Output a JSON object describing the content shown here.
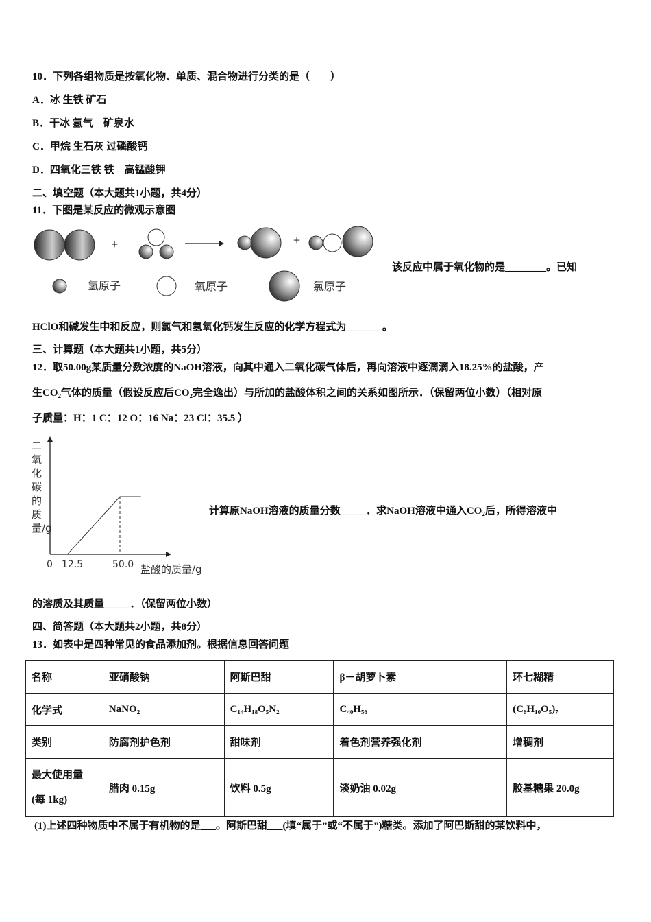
{
  "q10": {
    "stem": "10．下列各组物质是按氧化物、单质、混合物进行分类的是（　　）",
    "options": [
      "A．冰 生铁 矿石",
      "B．干冰 氢气　矿泉水",
      "C．甲烷 生石灰 过磷酸钙",
      "D．四氧化三铁 铁　高锰酸钾"
    ]
  },
  "section2": "二、填空题（本大题共1小题，共4分）",
  "q11": {
    "stem": "11．下图是某反应的微观示意图",
    "legend": {
      "hydrogen": "氢原子",
      "oxygen": "氧原子",
      "chlorine": "氯原子"
    },
    "plus": "+",
    "text_right": "该反应中属于氧化物的是________。已知",
    "text_next": "HClO和碱发生中和反应，则氯气和氢氧化钙发生反应的化学方程式为_______。"
  },
  "section3": "三、计算题（本大题共1小题，共5分）",
  "q12": {
    "line1": "12．取50.00g某质量分数浓度的NaOH溶液，向其中通入二氧化碳气体后，再向溶液中逐滴滴入18.25%的盐酸，产",
    "line2": "生CO₂气体的质量（假设反应后CO₂完全逸出）与所加的盐酸体积之间的关系如图所示．（保留两位小数）（相对原",
    "line3": "子质量：H：1 C：12 O：16 Na：23 Cl：35.5 ）",
    "text_right": "计算原NaOH溶液的质量分数_____．求NaOH溶液中通入CO₂后，所得溶液中",
    "text_next": "的溶质及其质量_____．（保留两位小数）"
  },
  "chart_data": {
    "type": "line",
    "ylabel": "二氧化碳的质量/g",
    "xlabel": "盐酸的质量/g",
    "origin_label": "0",
    "x_ticks": [
      "12.5",
      "50.0"
    ],
    "points": [
      [
        12.5,
        0
      ],
      [
        50.0,
        1
      ],
      [
        65,
        1
      ]
    ],
    "dashed_at_x": 50.0
  },
  "section4": "四、简答题（本大题共2小题，共8分）",
  "q13": {
    "stem": "13．如表中是四种常见的食品添加剂。根据信息回答问题",
    "table": [
      [
        "名称",
        "亚硝酸钠",
        "阿斯巴甜",
        "β－胡萝卜素",
        "环七糊精"
      ],
      [
        "化学式",
        "NaNO₂",
        "C₁₄H₁₈O₅N₂",
        "C₄₀H₅₆",
        "(C₆H₁₀O₅)₇"
      ],
      [
        "类别",
        "防腐剂护色剂",
        "甜味剂",
        "着色剂营养强化剂",
        "增稠剂"
      ],
      [
        "最大使用量",
        "腊肉 0.15g",
        "饮料 0.5g",
        "淡奶油 0.02g",
        "胶基糖果 20.0g"
      ]
    ],
    "max_use_sub": "(每 1kg)",
    "sub1": "(1)上述四种物质中不属于有机物的是___。阿斯巴甜___(填“属于”或“不属于”)糖类。添加了阿巴斯甜的某饮料中，"
  }
}
